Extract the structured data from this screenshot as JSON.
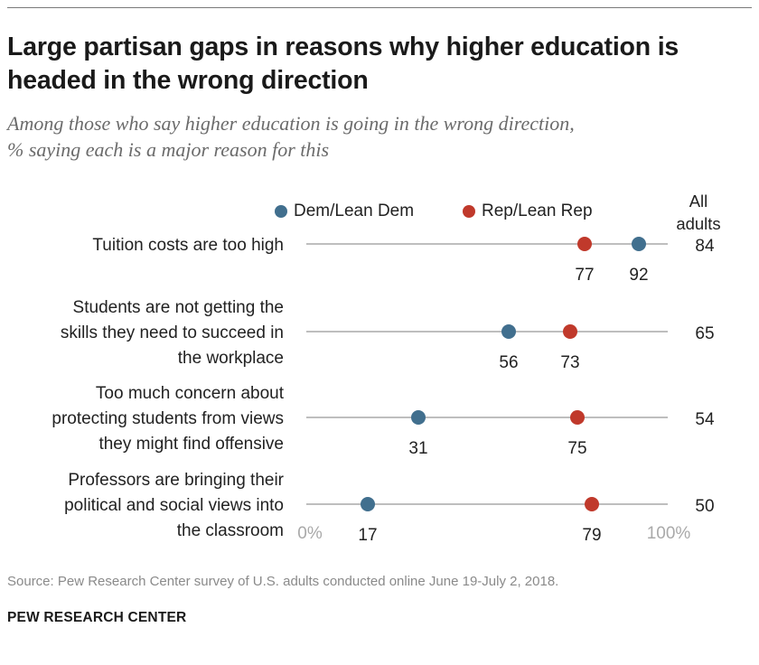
{
  "header": {
    "title": "Large partisan gaps in reasons why higher education is headed in the wrong direction",
    "subtitle_line1": "Among those who say higher education is going in the wrong direction,",
    "subtitle_line2": "% saying each is a major reason for this"
  },
  "legend": {
    "dem_label": "Dem/Lean Dem",
    "rep_label": "Rep/Lean Rep",
    "all_adults_line1": "All",
    "all_adults_line2": "adults"
  },
  "colors": {
    "dem": "#416f8e",
    "rep": "#c0392b",
    "axis_line": "#a9a9a9",
    "axis_label": "#a9a9a9"
  },
  "chart_data": {
    "type": "scatter",
    "subtype": "dot-plot",
    "xlim": [
      0,
      100
    ],
    "axis_tick_labels": [
      "0%",
      "100%"
    ],
    "categories": [
      [
        "Tuition costs are too high"
      ],
      [
        "Students are not getting the",
        "skills they need to succeed in",
        "the workplace"
      ],
      [
        "Too much concern about",
        "protecting students from views",
        "they might find offensive"
      ],
      [
        "Professors are bringing their",
        "political and social views into",
        "the classroom"
      ]
    ],
    "series": [
      {
        "name": "Dem/Lean Dem",
        "values": [
          92,
          56,
          31,
          17
        ]
      },
      {
        "name": "Rep/Lean Rep",
        "values": [
          77,
          73,
          75,
          79
        ]
      }
    ],
    "all_adults": [
      84,
      65,
      54,
      50
    ]
  },
  "footer": {
    "source": "Source: Pew Research Center survey of U.S. adults conducted online June 19-July 2, 2018.",
    "credit": "PEW RESEARCH CENTER"
  }
}
